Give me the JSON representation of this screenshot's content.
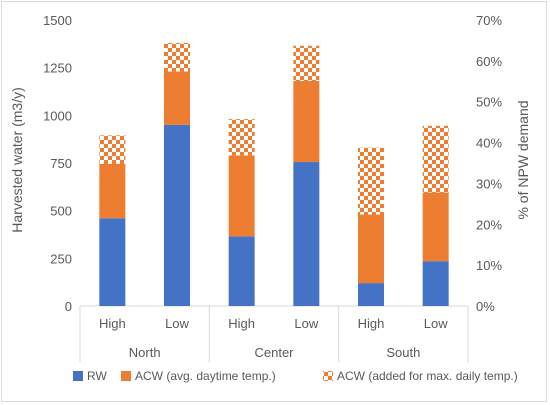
{
  "chart_data": {
    "type": "bar",
    "stacked": true,
    "groups": [
      {
        "name": "North",
        "categories": [
          "High",
          "Low"
        ]
      },
      {
        "name": "Center",
        "categories": [
          "High",
          "Low"
        ]
      },
      {
        "name": "South",
        "categories": [
          "High",
          "Low"
        ]
      }
    ],
    "series": [
      {
        "name": "RW",
        "color": "#4472c4",
        "pattern": "solid",
        "values": [
          460,
          950,
          365,
          755,
          120,
          235
        ]
      },
      {
        "name": "ACW (avg. daytime temp.)",
        "color": "#ed7d31",
        "pattern": "solid",
        "values": [
          285,
          280,
          425,
          425,
          360,
          360
        ]
      },
      {
        "name": "ACW (added for max. daily temp.)",
        "color": "#ed7d31",
        "pattern": "checkerboard",
        "values": [
          150,
          150,
          190,
          185,
          350,
          350
        ]
      }
    ],
    "ylabel": "Harvested water (m3/y)",
    "ylim": [
      0,
      1500
    ],
    "yticks": [
      "0",
      "250",
      "500",
      "750",
      "1000",
      "1250",
      "1500"
    ],
    "y2label": "% of NPW demand",
    "y2lim": [
      0,
      70
    ],
    "y2ticks": [
      "0%",
      "10%",
      "20%",
      "30%",
      "40%",
      "50%",
      "60%",
      "70%"
    ],
    "grid": false,
    "legend_position": "bottom"
  }
}
